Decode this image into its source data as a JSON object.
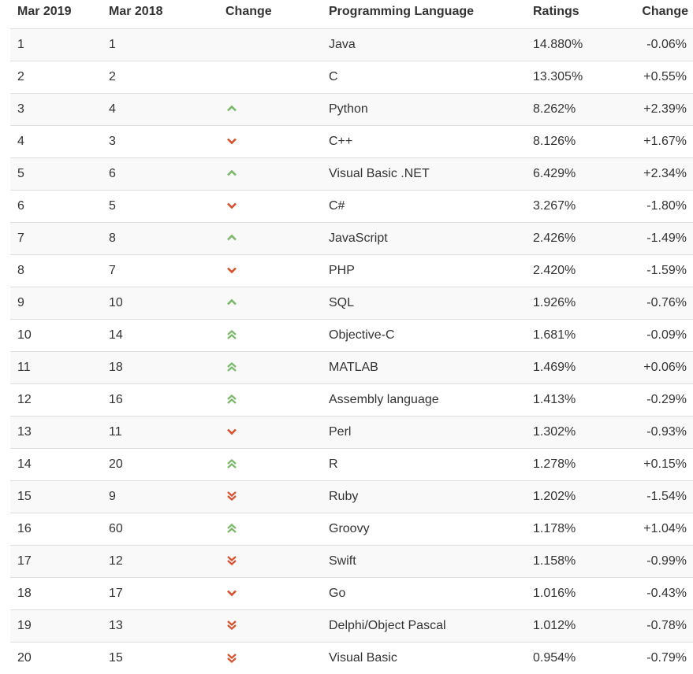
{
  "table": {
    "headers": {
      "rank_2019": "Mar 2019",
      "rank_2018": "Mar 2018",
      "change": "Change",
      "language": "Programming Language",
      "ratings": "Ratings",
      "ratings_change": "Change"
    },
    "colors": {
      "up": "#7ab86a",
      "down": "#d9512c"
    },
    "rows": [
      {
        "rank_2019": "1",
        "rank_2018": "1",
        "trend": "none",
        "language": "Java",
        "ratings": "14.880%",
        "change": "-0.06%"
      },
      {
        "rank_2019": "2",
        "rank_2018": "2",
        "trend": "none",
        "language": "C",
        "ratings": "13.305%",
        "change": "+0.55%"
      },
      {
        "rank_2019": "3",
        "rank_2018": "4",
        "trend": "up",
        "language": "Python",
        "ratings": "8.262%",
        "change": "+2.39%"
      },
      {
        "rank_2019": "4",
        "rank_2018": "3",
        "trend": "down",
        "language": "C++",
        "ratings": "8.126%",
        "change": "+1.67%"
      },
      {
        "rank_2019": "5",
        "rank_2018": "6",
        "trend": "up",
        "language": "Visual Basic .NET",
        "ratings": "6.429%",
        "change": "+2.34%"
      },
      {
        "rank_2019": "6",
        "rank_2018": "5",
        "trend": "down",
        "language": "C#",
        "ratings": "3.267%",
        "change": "-1.80%"
      },
      {
        "rank_2019": "7",
        "rank_2018": "8",
        "trend": "up",
        "language": "JavaScript",
        "ratings": "2.426%",
        "change": "-1.49%"
      },
      {
        "rank_2019": "8",
        "rank_2018": "7",
        "trend": "down",
        "language": "PHP",
        "ratings": "2.420%",
        "change": "-1.59%"
      },
      {
        "rank_2019": "9",
        "rank_2018": "10",
        "trend": "up",
        "language": "SQL",
        "ratings": "1.926%",
        "change": "-0.76%"
      },
      {
        "rank_2019": "10",
        "rank_2018": "14",
        "trend": "double-up",
        "language": "Objective-C",
        "ratings": "1.681%",
        "change": "-0.09%"
      },
      {
        "rank_2019": "11",
        "rank_2018": "18",
        "trend": "double-up",
        "language": "MATLAB",
        "ratings": "1.469%",
        "change": "+0.06%"
      },
      {
        "rank_2019": "12",
        "rank_2018": "16",
        "trend": "double-up",
        "language": "Assembly language",
        "ratings": "1.413%",
        "change": "-0.29%"
      },
      {
        "rank_2019": "13",
        "rank_2018": "11",
        "trend": "down",
        "language": "Perl",
        "ratings": "1.302%",
        "change": "-0.93%"
      },
      {
        "rank_2019": "14",
        "rank_2018": "20",
        "trend": "double-up",
        "language": "R",
        "ratings": "1.278%",
        "change": "+0.15%"
      },
      {
        "rank_2019": "15",
        "rank_2018": "9",
        "trend": "double-down",
        "language": "Ruby",
        "ratings": "1.202%",
        "change": "-1.54%"
      },
      {
        "rank_2019": "16",
        "rank_2018": "60",
        "trend": "double-up",
        "language": "Groovy",
        "ratings": "1.178%",
        "change": "+1.04%"
      },
      {
        "rank_2019": "17",
        "rank_2018": "12",
        "trend": "double-down",
        "language": "Swift",
        "ratings": "1.158%",
        "change": "-0.99%"
      },
      {
        "rank_2019": "18",
        "rank_2018": "17",
        "trend": "down",
        "language": "Go",
        "ratings": "1.016%",
        "change": "-0.43%"
      },
      {
        "rank_2019": "19",
        "rank_2018": "13",
        "trend": "double-down",
        "language": "Delphi/Object Pascal",
        "ratings": "1.012%",
        "change": "-0.78%"
      },
      {
        "rank_2019": "20",
        "rank_2018": "15",
        "trend": "double-down",
        "language": "Visual Basic",
        "ratings": "0.954%",
        "change": "-0.79%"
      }
    ]
  }
}
